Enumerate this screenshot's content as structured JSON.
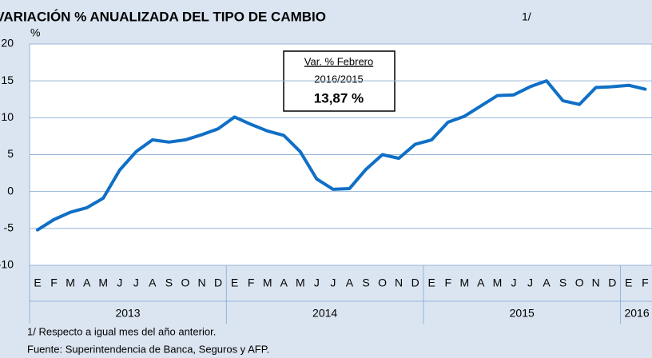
{
  "chart_data": {
    "type": "line",
    "title": "VARIACIÓN % ANUALIZADA DEL TIPO DE CAMBIO",
    "title_note": "1/",
    "y_label": "%",
    "categories": [
      "E",
      "F",
      "M",
      "A",
      "M",
      "J",
      "J",
      "A",
      "S",
      "O",
      "N",
      "D",
      "E",
      "F",
      "M",
      "A",
      "M",
      "J",
      "J",
      "A",
      "S",
      "O",
      "N",
      "D",
      "E",
      "F",
      "M",
      "A",
      "M",
      "J",
      "J",
      "A",
      "S",
      "O",
      "N",
      "D",
      "E",
      "F"
    ],
    "groups": [
      {
        "label": "2013",
        "count": 12
      },
      {
        "label": "2014",
        "count": 12
      },
      {
        "label": "2015",
        "count": 12
      },
      {
        "label": "2016",
        "count": 2
      }
    ],
    "series": [
      {
        "name": "Var. %",
        "color": "#0f6fc6",
        "values": [
          -5.2,
          -3.8,
          -2.8,
          -2.2,
          -0.9,
          2.9,
          5.4,
          7.0,
          6.7,
          7.0,
          7.7,
          8.5,
          10.1,
          9.1,
          8.2,
          7.6,
          5.4,
          1.7,
          0.3,
          0.4,
          3.0,
          5.0,
          4.5,
          6.4,
          7.0,
          9.4,
          10.2,
          11.6,
          13.0,
          13.1,
          14.2,
          15.0,
          12.3,
          11.8,
          14.1,
          14.2,
          14.4,
          13.87
        ]
      }
    ],
    "ylim": [
      -10,
      20
    ],
    "yticks": [
      -10,
      -5,
      0,
      5,
      10,
      15,
      20
    ],
    "grid": true,
    "annotation": {
      "title": "Var. % Febrero",
      "period": "2016/2015",
      "value": "13,87 %"
    },
    "footnotes": [
      "1/ Respecto a igual mes del año anterior.",
      "Fuente: Superintendencia de Banca, Seguros y AFP."
    ]
  }
}
